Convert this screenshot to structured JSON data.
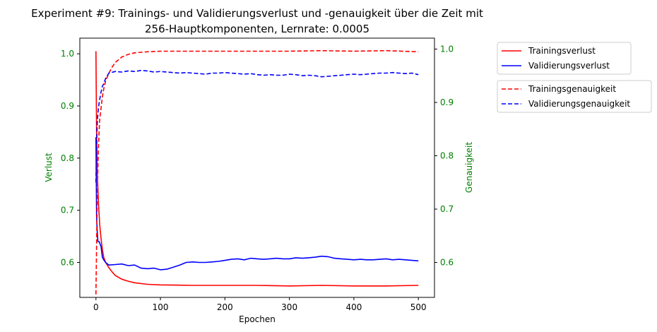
{
  "chart_data": {
    "type": "line",
    "title_line1": "Experiment #9: Trainings- und Validierungsverlust und -genauigkeit über die Zeit mit",
    "title_line2": "256-Hauptkomponenten, Lernrate: 0.0005",
    "xlabel": "Epochen",
    "ylabel_left": "Verlust",
    "ylabel_right": "Genauigkeit",
    "xlim": [
      -25,
      525
    ],
    "ylim_left": [
      0.533,
      1.03
    ],
    "ylim_right": [
      0.5345,
      1.0205
    ],
    "x_ticks": [
      0,
      100,
      200,
      300,
      400,
      500
    ],
    "y_ticks_left": [
      0.6,
      0.7,
      0.8,
      0.9,
      1.0
    ],
    "y_ticks_right": [
      0.6,
      0.7,
      0.8,
      0.9,
      1.0
    ],
    "x_tick_labels": [
      "0",
      "100",
      "200",
      "300",
      "400",
      "500"
    ],
    "y_tick_labels_left": [
      "0.6",
      "0.7",
      "0.8",
      "0.9",
      "1.0"
    ],
    "y_tick_labels_right": [
      "0.6",
      "0.7",
      "0.8",
      "0.9",
      "1.0"
    ],
    "grid": false,
    "legend_placement": "outside-right",
    "colors": {
      "axis_label": "#008000",
      "red": "#ff0000",
      "blue": "#0000ff"
    },
    "legend_loss": [
      "Trainingsverlust",
      "Validierungsverlust"
    ],
    "legend_acc": [
      "Trainingsgenauigkeit",
      "Validierungsgenauigkeit"
    ],
    "series": [
      {
        "name": "Trainingsverlust",
        "axis": "left",
        "color": "#ff0000",
        "dash": "solid",
        "x": [
          0,
          1,
          2,
          3,
          4,
          5,
          6,
          8,
          10,
          12,
          15,
          20,
          25,
          30,
          40,
          50,
          60,
          80,
          100,
          150,
          200,
          250,
          300,
          350,
          400,
          450,
          500
        ],
        "y": [
          1.005,
          0.85,
          0.78,
          0.74,
          0.71,
          0.69,
          0.67,
          0.645,
          0.625,
          0.61,
          0.6,
          0.59,
          0.582,
          0.575,
          0.568,
          0.564,
          0.561,
          0.558,
          0.557,
          0.556,
          0.556,
          0.556,
          0.555,
          0.556,
          0.555,
          0.555,
          0.556
        ]
      },
      {
        "name": "Validierungsverlust",
        "axis": "left",
        "color": "#0000ff",
        "dash": "solid",
        "x": [
          0,
          1,
          2,
          3,
          5,
          8,
          10,
          12,
          15,
          20,
          30,
          40,
          50,
          60,
          70,
          80,
          90,
          100,
          110,
          120,
          130,
          140,
          150,
          160,
          170,
          180,
          190,
          200,
          210,
          220,
          230,
          240,
          250,
          260,
          270,
          280,
          290,
          300,
          310,
          320,
          330,
          340,
          350,
          360,
          370,
          380,
          390,
          400,
          410,
          420,
          430,
          440,
          450,
          460,
          470,
          480,
          490,
          500
        ],
        "y": [
          0.84,
          0.69,
          0.66,
          0.64,
          0.64,
          0.63,
          0.61,
          0.605,
          0.6,
          0.595,
          0.596,
          0.597,
          0.594,
          0.595,
          0.589,
          0.588,
          0.589,
          0.586,
          0.587,
          0.591,
          0.595,
          0.6,
          0.601,
          0.6,
          0.6,
          0.601,
          0.602,
          0.604,
          0.606,
          0.607,
          0.605,
          0.608,
          0.607,
          0.606,
          0.607,
          0.608,
          0.607,
          0.607,
          0.609,
          0.608,
          0.609,
          0.61,
          0.612,
          0.611,
          0.608,
          0.607,
          0.606,
          0.605,
          0.606,
          0.605,
          0.605,
          0.606,
          0.607,
          0.605,
          0.606,
          0.605,
          0.604,
          0.603
        ]
      },
      {
        "name": "Trainingsgenauigkeit",
        "axis": "right",
        "color": "#ff0000",
        "dash": "dashed",
        "x": [
          0,
          1,
          2,
          3,
          4,
          5,
          6,
          8,
          10,
          12,
          15,
          20,
          25,
          30,
          40,
          50,
          60,
          80,
          100,
          150,
          200,
          250,
          300,
          350,
          400,
          450,
          500
        ],
        "y": [
          0.54,
          0.63,
          0.72,
          0.78,
          0.82,
          0.85,
          0.87,
          0.89,
          0.91,
          0.925,
          0.94,
          0.955,
          0.966,
          0.975,
          0.985,
          0.99,
          0.993,
          0.995,
          0.996,
          0.996,
          0.996,
          0.996,
          0.996,
          0.997,
          0.996,
          0.997,
          0.995
        ]
      },
      {
        "name": "Validierungsgenauigkeit",
        "axis": "right",
        "color": "#0000ff",
        "dash": "dashed",
        "x": [
          0,
          1,
          2,
          3,
          5,
          8,
          10,
          12,
          15,
          20,
          30,
          40,
          50,
          60,
          70,
          80,
          90,
          100,
          110,
          120,
          130,
          140,
          150,
          160,
          170,
          180,
          190,
          200,
          210,
          220,
          230,
          240,
          250,
          260,
          270,
          280,
          290,
          300,
          310,
          320,
          330,
          340,
          350,
          360,
          370,
          380,
          390,
          400,
          410,
          420,
          430,
          440,
          450,
          460,
          470,
          480,
          490,
          500
        ],
        "y": [
          0.75,
          0.82,
          0.86,
          0.88,
          0.9,
          0.92,
          0.93,
          0.935,
          0.945,
          0.955,
          0.958,
          0.957,
          0.959,
          0.958,
          0.96,
          0.959,
          0.957,
          0.958,
          0.957,
          0.956,
          0.955,
          0.956,
          0.955,
          0.954,
          0.953,
          0.955,
          0.955,
          0.956,
          0.955,
          0.954,
          0.953,
          0.954,
          0.952,
          0.951,
          0.952,
          0.951,
          0.951,
          0.953,
          0.952,
          0.95,
          0.951,
          0.95,
          0.948,
          0.949,
          0.95,
          0.951,
          0.952,
          0.953,
          0.952,
          0.953,
          0.954,
          0.955,
          0.955,
          0.956,
          0.955,
          0.954,
          0.955,
          0.952
        ]
      }
    ]
  }
}
